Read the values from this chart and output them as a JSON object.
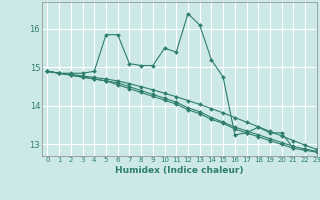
{
  "title": "",
  "xlabel": "Humidex (Indice chaleur)",
  "ylabel": "",
  "background_color": "#cce9e7",
  "grid_color": "#ffffff",
  "line_color": "#2e7d6e",
  "xlim": [
    -0.5,
    23
  ],
  "ylim": [
    12.7,
    16.7
  ],
  "yticks": [
    13,
    14,
    15,
    16
  ],
  "xticks": [
    0,
    1,
    2,
    3,
    4,
    5,
    6,
    7,
    8,
    9,
    10,
    11,
    12,
    13,
    14,
    15,
    16,
    17,
    18,
    19,
    20,
    21,
    22,
    23
  ],
  "series": [
    [
      14.9,
      14.85,
      14.85,
      14.85,
      14.9,
      15.85,
      15.85,
      15.1,
      15.05,
      15.05,
      15.5,
      15.4,
      16.4,
      16.1,
      15.2,
      14.75,
      13.25,
      13.3,
      13.45,
      13.3,
      13.3,
      12.9,
      null,
      null
    ],
    [
      14.9,
      14.85,
      14.8,
      14.75,
      14.7,
      14.65,
      14.55,
      14.45,
      14.35,
      14.25,
      14.15,
      14.05,
      13.9,
      13.8,
      13.65,
      13.55,
      13.4,
      13.3,
      13.2,
      13.1,
      13.0,
      12.9,
      12.85,
      12.8
    ],
    [
      14.9,
      14.85,
      14.8,
      14.75,
      14.7,
      14.65,
      14.6,
      14.5,
      14.4,
      14.3,
      14.2,
      14.1,
      13.95,
      13.85,
      13.7,
      13.58,
      13.45,
      13.35,
      13.25,
      13.15,
      13.05,
      12.95,
      12.88,
      12.82
    ],
    [
      14.9,
      14.85,
      14.82,
      14.78,
      14.74,
      14.7,
      14.65,
      14.58,
      14.5,
      14.42,
      14.33,
      14.24,
      14.14,
      14.04,
      13.93,
      13.82,
      13.7,
      13.58,
      13.46,
      13.34,
      13.22,
      13.1,
      12.98,
      12.87
    ]
  ]
}
